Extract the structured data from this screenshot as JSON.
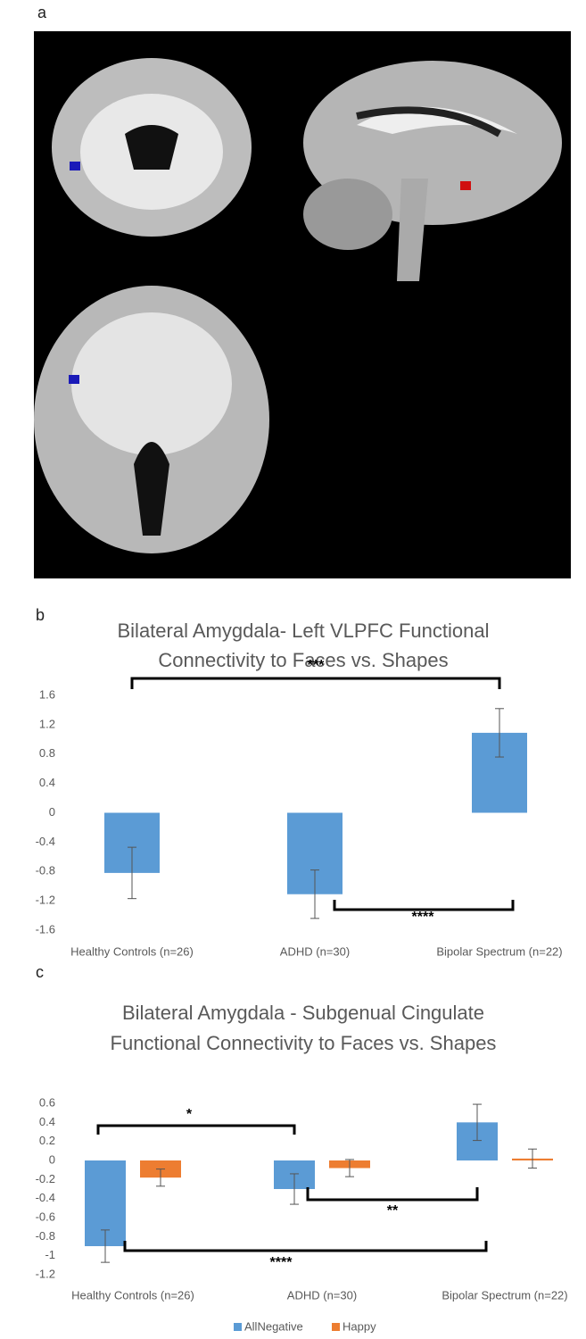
{
  "panel_labels": [
    "a",
    "b",
    "c"
  ],
  "chart_data": [
    {
      "type": "bar",
      "title": [
        "Bilateral Amygdala- Left VLPFC Functional",
        "Connectivity to Faces vs. Shapes"
      ],
      "categories": [
        "Healthy Controls (n=26)",
        "ADHD (n=30)",
        "Bipolar Spectrum (n=22)"
      ],
      "values": [
        -0.82,
        -1.11,
        1.09
      ],
      "errors": [
        0.35,
        0.33,
        0.33
      ],
      "color": "#5b9bd5",
      "ylim": [
        -1.6,
        1.6
      ],
      "yticks": [
        -1.6,
        -1.2,
        -0.8,
        -0.4,
        0,
        0.4,
        0.8,
        1.2,
        1.6
      ],
      "annotations": [
        "***",
        "****"
      ]
    },
    {
      "type": "bar",
      "title": [
        "Bilateral Amygdala - Subgenual Cingulate",
        "Functional Connectivity to Faces vs. Shapes"
      ],
      "categories": [
        "Healthy Controls (n=26)",
        "ADHD (n=30)",
        "Bipolar Spectrum (n=22)"
      ],
      "series": [
        {
          "name": "AllNegative",
          "color": "#5b9bd5",
          "values": [
            -0.9,
            -0.3,
            0.4
          ],
          "errors": [
            0.17,
            0.16,
            0.19
          ]
        },
        {
          "name": "Happy",
          "color": "#ed7d31",
          "values": [
            -0.18,
            -0.08,
            0.02
          ],
          "errors": [
            0.09,
            0.09,
            0.1
          ]
        }
      ],
      "ylim": [
        -1.2,
        0.6
      ],
      "yticks": [
        -1.2,
        -1,
        -0.8,
        -0.6,
        -0.4,
        -0.2,
        0,
        0.2,
        0.4,
        0.6
      ],
      "annotations": [
        "*",
        "**",
        "****"
      ],
      "legend": "bottom"
    }
  ]
}
